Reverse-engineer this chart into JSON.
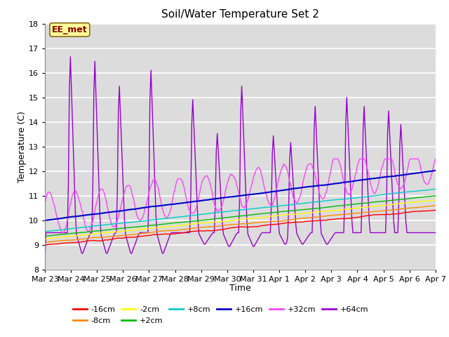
{
  "title": "Soil/Water Temperature Set 2",
  "xlabel": "Time",
  "ylabel": "Temperature (C)",
  "ylim": [
    8.0,
    18.0
  ],
  "yticks": [
    8.0,
    9.0,
    10.0,
    11.0,
    12.0,
    13.0,
    14.0,
    15.0,
    16.0,
    17.0,
    18.0
  ],
  "x_labels": [
    "Mar 23",
    "Mar 24",
    "Mar 25",
    "Mar 26",
    "Mar 27",
    "Mar 28",
    "Mar 29",
    "Mar 30",
    "Mar 31",
    "Apr 1",
    "Apr 2",
    "Apr 3",
    "Apr 4",
    "Apr 5",
    "Apr 6",
    "Apr 7"
  ],
  "annotation_text": "EE_met",
  "annotation_color": "#8B0000",
  "annotation_bg": "#FFFF99",
  "series": [
    {
      "label": "-16cm",
      "color": "#FF0000"
    },
    {
      "label": "-8cm",
      "color": "#FF8C00"
    },
    {
      "label": "-2cm",
      "color": "#FFFF00"
    },
    {
      "label": "+2cm",
      "color": "#00BB00"
    },
    {
      "label": "+8cm",
      "color": "#00CCCC"
    },
    {
      "label": "+16cm",
      "color": "#0000CC"
    },
    {
      "label": "+32cm",
      "color": "#FF44FF"
    },
    {
      "label": "+64cm",
      "color": "#9900CC"
    }
  ],
  "bg_color": "#DCDCDC",
  "grid_color": "#FFFFFF"
}
